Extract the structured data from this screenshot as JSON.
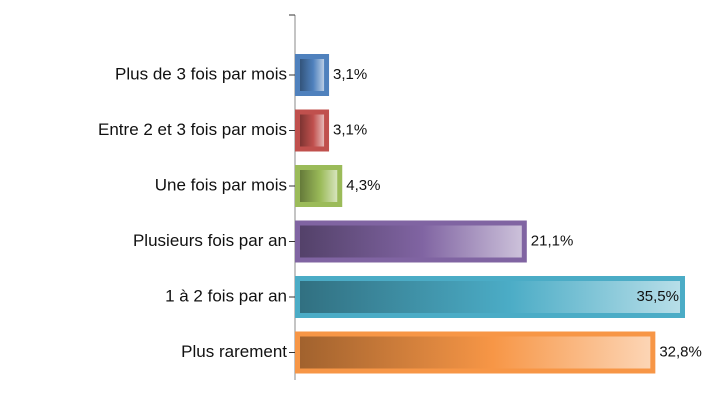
{
  "chart_data": {
    "type": "bar",
    "orientation": "horizontal",
    "categories": [
      "Plus de 3 fois par mois",
      "Entre 2 et 3 fois par mois",
      "Une fois par mois",
      "Plusieurs fois par an",
      "1 à 2 fois par an",
      "Plus rarement"
    ],
    "values": [
      3.1,
      3.1,
      4.3,
      21.1,
      35.5,
      32.8
    ],
    "value_labels": [
      "3,1%",
      "3,1%",
      "4,3%",
      "21,1%",
      "35,5%",
      "32,8%"
    ],
    "colors": [
      "#4f81bd",
      "#c0504d",
      "#9bbb59",
      "#8064a2",
      "#4bacc6",
      "#f79646"
    ],
    "xlim": [
      0,
      35.5
    ]
  }
}
